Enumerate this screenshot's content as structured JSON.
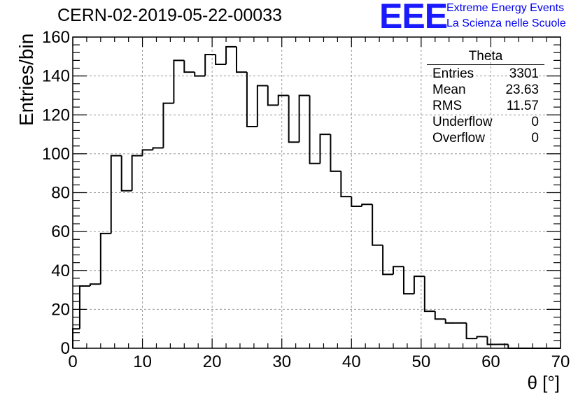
{
  "title": "CERN-02-2019-05-22-00033",
  "logo": {
    "mark": "EEE",
    "line1": "Extreme Energy Events",
    "line2": "La Scienza nelle Scuole"
  },
  "stats": {
    "title": "Theta",
    "rows": [
      {
        "label": "Entries",
        "value": "3301"
      },
      {
        "label": "Mean",
        "value": "23.63"
      },
      {
        "label": "RMS",
        "value": "11.57"
      },
      {
        "label": "Underflow",
        "value": "0"
      },
      {
        "label": "Overflow",
        "value": "0"
      }
    ]
  },
  "chart_data": {
    "type": "histogram",
    "title": "CERN-02-2019-05-22-00033",
    "xlabel": "θ [°]",
    "ylabel": "Entries/bin",
    "xlim": [
      0,
      70
    ],
    "ylim": [
      0,
      160
    ],
    "xticks": [
      0,
      10,
      20,
      30,
      40,
      50,
      60,
      70
    ],
    "yticks": [
      0,
      20,
      40,
      60,
      80,
      100,
      120,
      140,
      160
    ],
    "bin_width": 1.5,
    "bin_start": -0.5,
    "values": [
      10,
      32,
      33,
      59,
      99,
      81,
      99,
      102,
      103,
      126,
      148,
      142,
      140,
      151,
      146,
      155,
      142,
      114,
      135,
      125,
      130,
      106,
      130,
      95,
      110,
      91,
      78,
      73,
      74,
      53,
      38,
      42,
      28,
      37,
      19,
      15,
      13,
      13,
      5,
      6,
      2,
      2,
      0,
      0,
      0,
      0,
      0
    ],
    "grid": true,
    "line_color": "#000000"
  }
}
